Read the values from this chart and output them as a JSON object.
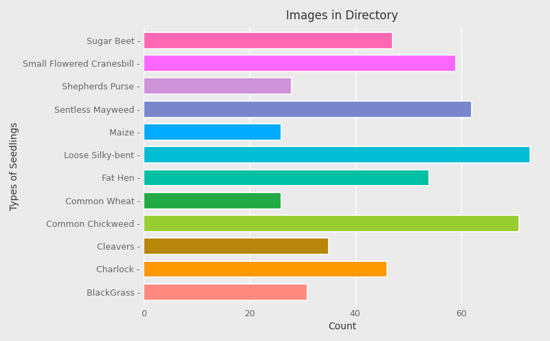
{
  "title": "Images in Directory",
  "xlabel": "Count",
  "ylabel": "Types of Seedlings",
  "categories_top_to_bottom": [
    "Sugar Beet",
    "Small Flowered Cranesbill",
    "Shepherds Purse",
    "Sentless Mayweed",
    "Maize",
    "Loose Silky-bent",
    "Fat Hen",
    "Common Wheat",
    "Common Chickweed",
    "Cleavers",
    "Charlock",
    "BlackGrass"
  ],
  "values_top_to_bottom": [
    47,
    59,
    28,
    62,
    26,
    73,
    54,
    26,
    71,
    35,
    46,
    31
  ],
  "colors_top_to_bottom": [
    "#FF69B4",
    "#FF66FF",
    "#CE93D8",
    "#7986CB",
    "#00AAFF",
    "#00BCD4",
    "#00BFA5",
    "#22AA44",
    "#9ACD32",
    "#B8860B",
    "#FF9800",
    "#FF8A80"
  ],
  "background_color": "#EBEBEB",
  "grid_color": "#FFFFFF",
  "xlim": [
    0,
    75
  ],
  "xticks": [
    0,
    20,
    40,
    60
  ],
  "title_fontsize": 12,
  "label_fontsize": 10,
  "tick_fontsize": 9,
  "bar_height": 0.72,
  "bar_spacing": 1.0
}
